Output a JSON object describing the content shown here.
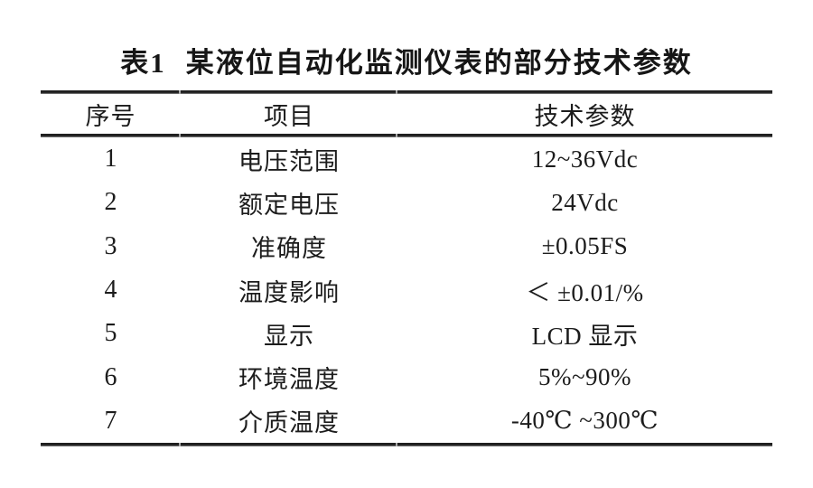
{
  "page": {
    "background": "#ffffff",
    "text_color": "#1c1c1c",
    "rule_color": "#1f1f1f"
  },
  "table": {
    "title": {
      "label": "表1",
      "text": "某液位自动化监测仪表的部分技术参数"
    },
    "columns": [
      "序号",
      "项目",
      "技术参数"
    ],
    "rows": [
      {
        "no": "1",
        "item": "电压范围",
        "value": "12~36Vdc"
      },
      {
        "no": "2",
        "item": "额定电压",
        "value": "24Vdc"
      },
      {
        "no": "3",
        "item": "准确度",
        "value": "±0.05FS"
      },
      {
        "no": "4",
        "item": "温度影响",
        "value": "＜ ±0.01/%"
      },
      {
        "no": "5",
        "item": "显示",
        "value": "LCD 显示"
      },
      {
        "no": "6",
        "item": "环境温度",
        "value": "5%~90%"
      },
      {
        "no": "7",
        "item": "介质温度",
        "value": "-40℃ ~300℃"
      }
    ]
  }
}
